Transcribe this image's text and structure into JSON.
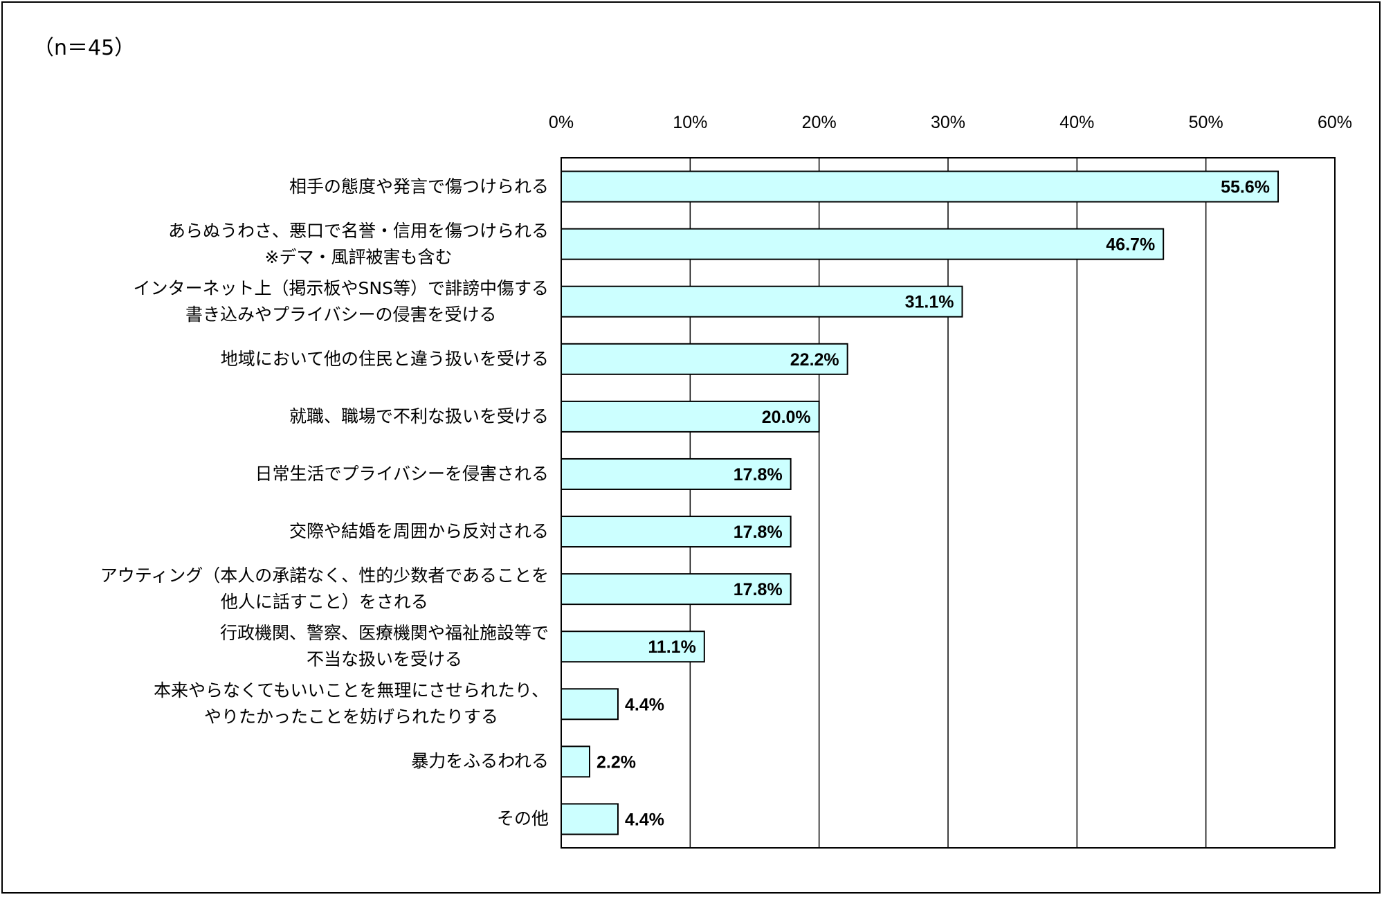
{
  "sample_note": "（n＝45）",
  "colors": {
    "bar_fill": "#ccffff",
    "bar_stroke": "#000000",
    "grid": "#000000",
    "frame": "#000000"
  },
  "chart_data": {
    "type": "bar",
    "orientation": "horizontal",
    "title": "",
    "xlabel": "",
    "ylabel": "",
    "xlim": [
      0,
      60
    ],
    "x_ticks": [
      "0%",
      "10%",
      "20%",
      "30%",
      "40%",
      "50%",
      "60%"
    ],
    "x_tick_values": [
      0,
      10,
      20,
      30,
      40,
      50,
      60
    ],
    "grid": "vertical",
    "legend": "none",
    "categories": [
      [
        "相手の態度や発言で傷つけられる"
      ],
      [
        "あらぬうわさ、悪口で名誉・信用を傷つけられる",
        "※デマ・風評被害も含む"
      ],
      [
        "インターネット上（掲示板やSNS等）で誹謗中傷する",
        "書き込みやプライバシーの侵害を受ける"
      ],
      [
        "地域において他の住民と違う扱いを受ける"
      ],
      [
        "就職、職場で不利な扱いを受ける"
      ],
      [
        "日常生活でプライバシーを侵害される"
      ],
      [
        "交際や結婚を周囲から反対される"
      ],
      [
        "アウティング（本人の承諾なく、性的少数者であることを",
        "他人に話すこと）をされる"
      ],
      [
        "行政機関、警察、医療機関や福祉施設等で",
        "不当な扱いを受ける"
      ],
      [
        "本来やらなくてもいいことを無理にさせられたり、",
        "やりたかったことを妨げられたりする"
      ],
      [
        "暴力をふるわれる"
      ],
      [
        "その他"
      ]
    ],
    "values": [
      55.6,
      46.7,
      31.1,
      22.2,
      20.0,
      17.8,
      17.8,
      17.8,
      11.1,
      4.4,
      2.2,
      4.4
    ],
    "data_labels": [
      "55.6%",
      "46.7%",
      "31.1%",
      "22.2%",
      "20.0%",
      "17.8%",
      "17.8%",
      "17.8%",
      "11.1%",
      "4.4%",
      "2.2%",
      "4.4%"
    ]
  }
}
